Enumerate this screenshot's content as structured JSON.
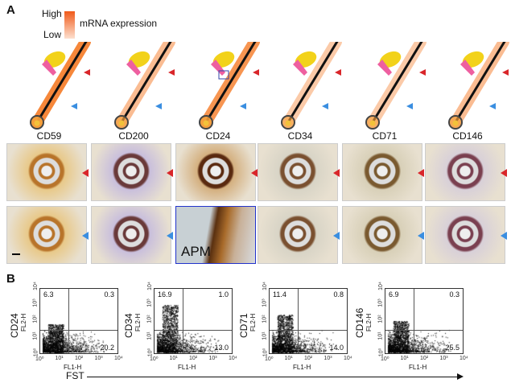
{
  "panel_a": {
    "label": "A",
    "legend": {
      "high": "High",
      "low": "Low",
      "title": "mRNA expression"
    },
    "markers": [
      {
        "name": "CD59",
        "expression": 0.9
      },
      {
        "name": "CD200",
        "expression": 0.5
      },
      {
        "name": "CD24",
        "expression": 0.8
      },
      {
        "name": "CD34",
        "expression": 0.4
      },
      {
        "name": "CD71",
        "expression": 0.4
      },
      {
        "name": "CD146",
        "expression": 0.5
      }
    ],
    "apm_label": "APM",
    "colors": {
      "upper_arrow": "#d9262a",
      "lower_arrow": "#3a8ee0",
      "gland": "#f2d21a",
      "apm": "#ee5fa0"
    }
  },
  "panel_b": {
    "label": "B",
    "x_axis_label": "FL1-H",
    "y_axis_label": "FL2-H",
    "x_group_label": "FST",
    "ticks": [
      "10⁰",
      "10¹",
      "10²",
      "10³",
      "10⁴"
    ],
    "plots": [
      {
        "marker": "CD24",
        "ul": "6.3",
        "ur": "0.3",
        "lr": "20.2"
      },
      {
        "marker": "CD34",
        "ul": "16.9",
        "ur": "1.0",
        "lr": "13.0"
      },
      {
        "marker": "CD71",
        "ul": "11.4",
        "ur": "0.8",
        "lr": "14.0"
      },
      {
        "marker": "CD146",
        "ul": "6.9",
        "ur": "0.3",
        "lr": "25.5"
      }
    ]
  }
}
